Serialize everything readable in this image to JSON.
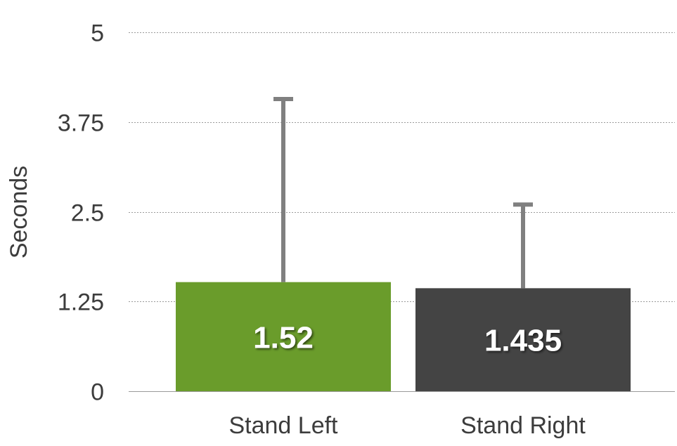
{
  "chart_data": {
    "type": "bar",
    "categories": [
      "Stand Left",
      "Stand Right"
    ],
    "values": [
      1.52,
      1.435
    ],
    "value_labels": [
      "1.52",
      "1.435"
    ],
    "error_upper": [
      4.07,
      2.6
    ],
    "colors": [
      "#6a9c2b",
      "#444444"
    ],
    "ylabel": "Seconds",
    "ylim": [
      0,
      5
    ],
    "yticks": [
      0,
      1.25,
      2.5,
      3.75,
      5
    ],
    "ytick_labels": [
      "0",
      "1.25",
      "2.5",
      "3.75",
      "5"
    ],
    "grid": true,
    "legend": "none"
  }
}
